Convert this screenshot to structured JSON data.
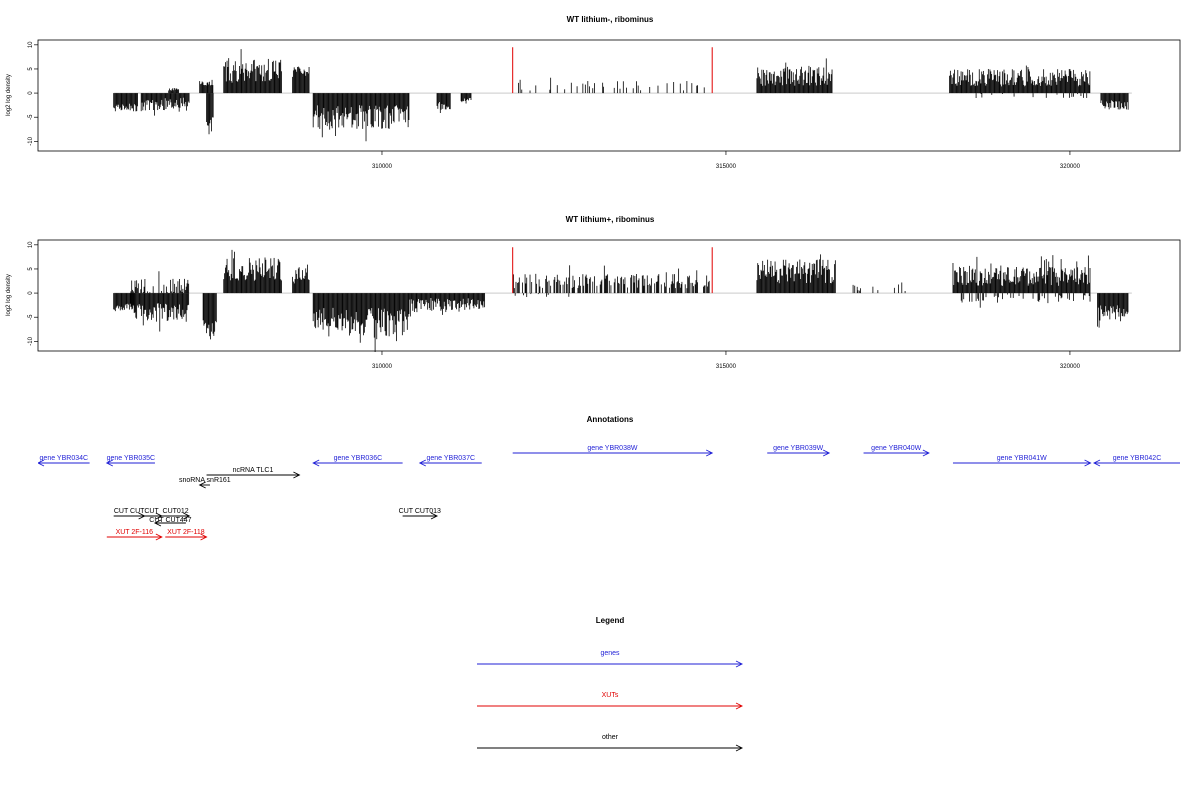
{
  "chart_data": [
    {
      "type": "bar",
      "title": "WT lithium-, ribominus",
      "ylabel": "log2 log density",
      "xlabel": "",
      "xlim": [
        305000,
        321600
      ],
      "ylim": [
        -12,
        10
      ],
      "x_ticks": [
        310000,
        315000,
        320000
      ],
      "x_tick_labels": [
        "310000",
        "315000",
        "320000"
      ],
      "y_ticks": [
        -10,
        -5,
        0,
        5,
        10
      ],
      "y_tick_labels": [
        "-10",
        "-5",
        "0",
        "5",
        "10"
      ],
      "grid": false,
      "colors": {
        "signal": "#000000",
        "highlight": "#e00000",
        "baseline": "#aaaaaa"
      },
      "segments": [
        {
          "start": 306100,
          "end": 306450,
          "sign": -1,
          "mean": 3.0,
          "amp": 0.8
        },
        {
          "start": 306500,
          "end": 307200,
          "sign": -1,
          "mean": 2.4,
          "amp": 1.5
        },
        {
          "start": 306900,
          "end": 307050,
          "sign": 1,
          "mean": 0.8,
          "amp": 0.3
        },
        {
          "start": 307350,
          "end": 307550,
          "sign": 1,
          "mean": 2.0,
          "amp": 0.5
        },
        {
          "start": 307450,
          "end": 307550,
          "sign": -1,
          "mean": 6.5,
          "amp": 1.5
        },
        {
          "start": 307700,
          "end": 308550,
          "sign": 1,
          "mean": 4.5,
          "amp": 2.5
        },
        {
          "start": 308700,
          "end": 308950,
          "sign": 1,
          "mean": 4.0,
          "amp": 1.5
        },
        {
          "start": 309000,
          "end": 310400,
          "sign": -1,
          "mean": 5.0,
          "amp": 2.5
        },
        {
          "start": 310800,
          "end": 311000,
          "sign": -1,
          "mean": 2.5,
          "amp": 1.0
        },
        {
          "start": 311150,
          "end": 311300,
          "sign": -1,
          "mean": 1.5,
          "amp": 0.5
        },
        {
          "start": 311900,
          "end": 314750,
          "sign": 1,
          "mean": 1.5,
          "amp": 1.0,
          "density": 0.15
        },
        {
          "start": 315450,
          "end": 316550,
          "sign": 1,
          "mean": 3.5,
          "amp": 2.0
        },
        {
          "start": 318250,
          "end": 320300,
          "sign": 1,
          "mean": 3.2,
          "amp": 1.8
        },
        {
          "start": 318300,
          "end": 320250,
          "sign": -1,
          "mean": 0.6,
          "amp": 0.5,
          "density": 0.15
        },
        {
          "start": 320450,
          "end": 320850,
          "sign": -1,
          "mean": 2.5,
          "amp": 1.0
        }
      ],
      "highlights": [
        {
          "x": 311900,
          "y": 9.5
        },
        {
          "x": 314800,
          "y": 9.5
        }
      ]
    },
    {
      "type": "bar",
      "title": "WT lithium+, ribominus",
      "ylabel": "log2 log density",
      "xlabel": "",
      "xlim": [
        305000,
        321600
      ],
      "ylim": [
        -12,
        10
      ],
      "x_ticks": [
        310000,
        315000,
        320000
      ],
      "x_tick_labels": [
        "310000",
        "315000",
        "320000"
      ],
      "y_ticks": [
        -10,
        -5,
        0,
        5,
        10
      ],
      "y_tick_labels": [
        "-10",
        "-5",
        "0",
        "5",
        "10"
      ],
      "grid": false,
      "colors": {
        "signal": "#000000",
        "highlight": "#e00000",
        "baseline": "#aaaaaa"
      },
      "segments": [
        {
          "start": 306100,
          "end": 306400,
          "sign": -1,
          "mean": 3.0,
          "amp": 0.8
        },
        {
          "start": 306350,
          "end": 307200,
          "sign": 1,
          "mean": 1.5,
          "amp": 1.5,
          "density": 0.6
        },
        {
          "start": 306350,
          "end": 307200,
          "sign": -1,
          "mean": 4.0,
          "amp": 2.0
        },
        {
          "start": 307400,
          "end": 307600,
          "sign": -1,
          "mean": 7.0,
          "amp": 2.0
        },
        {
          "start": 307700,
          "end": 308550,
          "sign": 1,
          "mean": 5.0,
          "amp": 2.5
        },
        {
          "start": 308700,
          "end": 308950,
          "sign": 1,
          "mean": 4.0,
          "amp": 2.0
        },
        {
          "start": 309000,
          "end": 310400,
          "sign": -1,
          "mean": 6.0,
          "amp": 3.0
        },
        {
          "start": 310400,
          "end": 311500,
          "sign": -1,
          "mean": 2.5,
          "amp": 1.5
        },
        {
          "start": 311900,
          "end": 314800,
          "sign": 1,
          "mean": 2.5,
          "amp": 1.5,
          "density": 0.6
        },
        {
          "start": 311900,
          "end": 312800,
          "sign": -1,
          "mean": 0.5,
          "amp": 0.4,
          "density": 0.15
        },
        {
          "start": 315450,
          "end": 316600,
          "sign": 1,
          "mean": 4.5,
          "amp": 2.5
        },
        {
          "start": 316800,
          "end": 317700,
          "sign": 1,
          "mean": 1.2,
          "amp": 0.8,
          "density": 0.2
        },
        {
          "start": 318300,
          "end": 320300,
          "sign": 1,
          "mean": 3.5,
          "amp": 2.0
        },
        {
          "start": 318300,
          "end": 320300,
          "sign": -1,
          "mean": 1.2,
          "amp": 1.0,
          "density": 0.25
        },
        {
          "start": 320400,
          "end": 320850,
          "sign": -1,
          "mean": 4.0,
          "amp": 1.5
        }
      ],
      "highlights": [
        {
          "x": 311900,
          "y": 9.5
        },
        {
          "x": 314800,
          "y": 9.5
        }
      ]
    }
  ],
  "annotations": {
    "title": "Annotations",
    "features": [
      {
        "label": "gene YBR034C",
        "start": 305000,
        "end": 305750,
        "row": 0,
        "strand": "-",
        "cls": "gene",
        "cut_label": true
      },
      {
        "label": "gene YBR035C",
        "start": 306000,
        "end": 306700,
        "row": 0,
        "strand": "-",
        "cls": "gene"
      },
      {
        "label": "ncRNA TLC1",
        "start": 307450,
        "end": 308800,
        "row": 1,
        "strand": "+",
        "cls": "other"
      },
      {
        "label": "snoRNA snR161",
        "start": 307350,
        "end": 307500,
        "row": 2,
        "strand": "-",
        "cls": "other"
      },
      {
        "label": "gene YBR036C",
        "start": 309000,
        "end": 310300,
        "row": 0,
        "strand": "-",
        "cls": "gene"
      },
      {
        "label": "gene YBR037C",
        "start": 310550,
        "end": 311450,
        "row": 0,
        "strand": "-",
        "cls": "gene"
      },
      {
        "label": "gene YBR038W",
        "start": 311900,
        "end": 314800,
        "row": -1,
        "strand": "+",
        "cls": "gene"
      },
      {
        "label": "gene YBR039W",
        "start": 315600,
        "end": 316500,
        "row": -1,
        "strand": "+",
        "cls": "gene"
      },
      {
        "label": "gene YBR040W",
        "start": 317000,
        "end": 317950,
        "row": -1,
        "strand": "+",
        "cls": "gene"
      },
      {
        "label": "gene YBR041W",
        "start": 318300,
        "end": 320300,
        "row": 0,
        "strand": "+",
        "cls": "gene"
      },
      {
        "label": "gene YBR042C",
        "start": 320350,
        "end": 321600,
        "row": 0,
        "strand": "-",
        "cls": "gene"
      },
      {
        "label": "CUT CUT",
        "start": 306100,
        "end": 306550,
        "row": 5,
        "strand": "+",
        "cls": "other"
      },
      {
        "label": "CUT",
        "start": 306500,
        "end": 306800,
        "row": 5,
        "strand": "+",
        "cls": "other"
      },
      {
        "label": "CUT012",
        "start": 306800,
        "end": 307200,
        "row": 5,
        "strand": "+",
        "cls": "other"
      },
      {
        "label": "CUT CUT447",
        "start": 306700,
        "end": 307150,
        "row": 6,
        "strand": "-",
        "cls": "other"
      },
      {
        "label": "CUT CUT013",
        "start": 310300,
        "end": 310800,
        "row": 5,
        "strand": "+",
        "cls": "other"
      },
      {
        "label": "XUT 2F-116",
        "start": 306000,
        "end": 306800,
        "row": 7,
        "strand": "+",
        "cls": "xut"
      },
      {
        "label": "XUT 2F-118",
        "start": 306850,
        "end": 307450,
        "row": 7,
        "strand": "+",
        "cls": "xut"
      }
    ]
  },
  "legend": {
    "title": "Legend",
    "items": [
      {
        "label": "genes",
        "color": "#1f1fd6"
      },
      {
        "label": "XUTs",
        "color": "#e00000"
      },
      {
        "label": "other",
        "color": "#000000"
      }
    ]
  },
  "colors": {
    "gene": "#1f1fd6",
    "xut": "#e00000",
    "other": "#000000",
    "axis": "#000000"
  }
}
